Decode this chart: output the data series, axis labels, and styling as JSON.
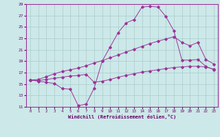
{
  "xlabel": "Windchill (Refroidissement éolien,°C)",
  "background_color": "#cce8e8",
  "grid_color": "#aacccc",
  "line_color": "#993399",
  "spine_color": "#993399",
  "tick_color": "#660066",
  "xlim": [
    -0.5,
    23.5
  ],
  "ylim": [
    11,
    29
  ],
  "xticks": [
    0,
    1,
    2,
    3,
    4,
    5,
    6,
    7,
    8,
    9,
    10,
    11,
    12,
    13,
    14,
    15,
    16,
    17,
    18,
    19,
    20,
    21,
    22,
    23
  ],
  "yticks": [
    11,
    13,
    15,
    17,
    19,
    21,
    23,
    25,
    27,
    29
  ],
  "line1_x": [
    0,
    1,
    2,
    3,
    4,
    5,
    6,
    7,
    8,
    9,
    10,
    11,
    12,
    13,
    14,
    15,
    16,
    17,
    18,
    19,
    20,
    21,
    22,
    23
  ],
  "line1_y": [
    15.7,
    15.5,
    15.3,
    15.1,
    14.2,
    14.1,
    11.2,
    11.5,
    14.3,
    19.0,
    21.5,
    24.0,
    25.7,
    26.3,
    28.5,
    28.6,
    28.5,
    26.8,
    24.3,
    19.2,
    19.2,
    19.3,
    18.1,
    17.5
  ],
  "line2_x": [
    0,
    1,
    2,
    3,
    4,
    5,
    6,
    7,
    8,
    9,
    10,
    11,
    12,
    13,
    14,
    15,
    16,
    17,
    18,
    19,
    20,
    21,
    22,
    23
  ],
  "line2_y": [
    15.7,
    15.8,
    16.3,
    16.8,
    17.2,
    17.5,
    17.8,
    18.2,
    18.7,
    19.1,
    19.6,
    20.1,
    20.6,
    21.1,
    21.6,
    22.1,
    22.5,
    22.9,
    23.3,
    22.3,
    21.7,
    22.3,
    19.3,
    18.5
  ],
  "line3_x": [
    0,
    1,
    2,
    3,
    4,
    5,
    6,
    7,
    8,
    9,
    10,
    11,
    12,
    13,
    14,
    15,
    16,
    17,
    18,
    19,
    20,
    21,
    22,
    23
  ],
  "line3_y": [
    15.7,
    15.6,
    15.8,
    16.0,
    16.2,
    16.4,
    16.5,
    16.7,
    15.3,
    15.5,
    15.8,
    16.2,
    16.5,
    16.8,
    17.1,
    17.3,
    17.5,
    17.7,
    17.9,
    18.0,
    18.1,
    18.1,
    18.0,
    17.6
  ]
}
